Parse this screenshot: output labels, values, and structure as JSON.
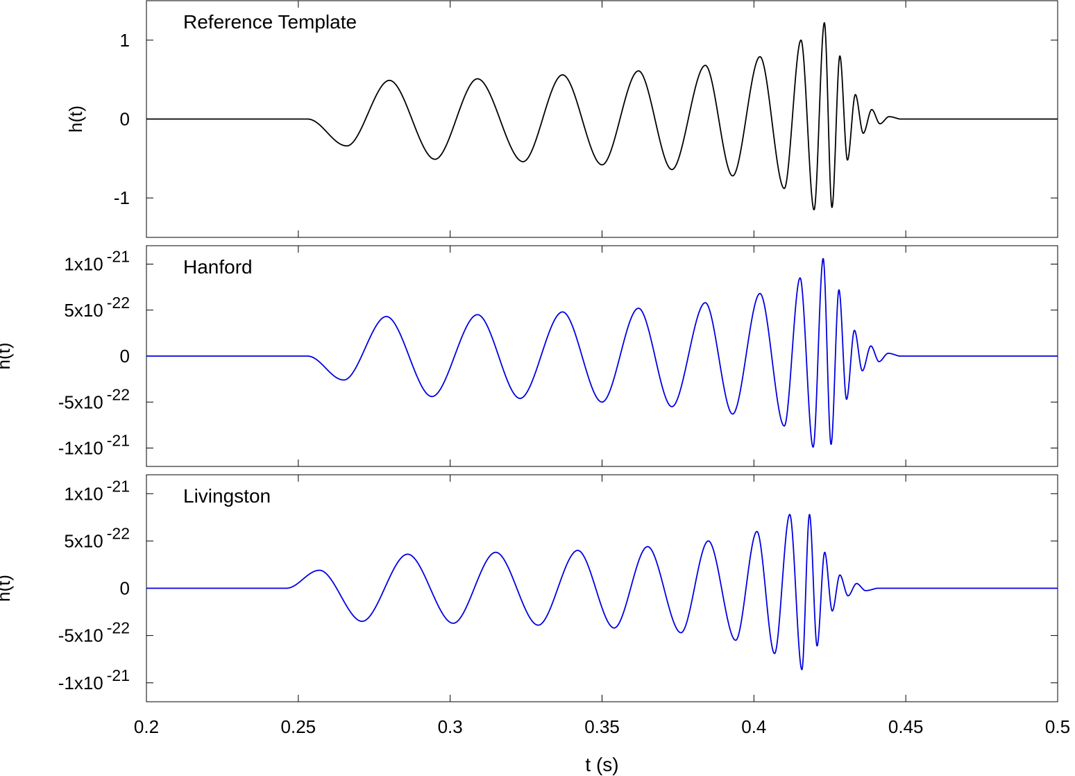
{
  "chart_data": [
    {
      "type": "line",
      "title": "Reference Template",
      "ylabel": "h(t)",
      "xlabel": "",
      "xlim": [
        0.2,
        0.5
      ],
      "ylim": [
        -1.5,
        1.5
      ],
      "yticks": [
        {
          "value": 1,
          "base": "1",
          "exp": ""
        },
        {
          "value": 0,
          "base": "0",
          "exp": ""
        },
        {
          "value": -1,
          "base": "-1",
          "exp": ""
        }
      ],
      "color": "#000000",
      "onset": 0.253,
      "scale": 0.49,
      "peak_t": 0.4232,
      "ringdown": 0.0055,
      "series": [
        {
          "x": [
            0.253,
            0.266,
            0.28,
            0.295,
            0.309,
            0.324,
            0.337,
            0.35,
            0.362,
            0.373,
            0.384,
            0.393,
            0.402,
            0.41,
            0.4155,
            0.4198,
            0.4232,
            0.4257,
            0.4283,
            0.4308,
            0.4334,
            0.436,
            0.4388,
            0.4415,
            0.4445,
            0.448
          ],
          "y": [
            0,
            -0.34,
            0.49,
            -0.51,
            0.51,
            -0.54,
            0.56,
            -0.58,
            0.61,
            -0.64,
            0.68,
            -0.72,
            0.79,
            -0.88,
            1.0,
            -1.15,
            1.22,
            -1.12,
            0.8,
            -0.52,
            0.31,
            -0.18,
            0.12,
            -0.06,
            0.03,
            0
          ]
        }
      ]
    },
    {
      "type": "line",
      "title": "Hanford",
      "ylabel": "h(t)",
      "xlabel": "",
      "xlim": [
        0.2,
        0.5
      ],
      "ylim": [
        -1.2e-21,
        1.2e-21
      ],
      "yticks": [
        {
          "value": 1e-21,
          "base": "1x10",
          "exp": "-21"
        },
        {
          "value": 5e-22,
          "base": "5x10",
          "exp": "-22"
        },
        {
          "value": 0,
          "base": "0",
          "exp": ""
        },
        {
          "value": -5e-22,
          "base": "-5x10",
          "exp": "-22"
        },
        {
          "value": -1e-21,
          "base": "-1x10",
          "exp": "-21"
        }
      ],
      "color": "#0000e0",
      "onset": 0.253,
      "scale": 4.3e-22,
      "peak_t": 0.4232,
      "ringdown": 0.0055,
      "series": [
        {
          "x": [
            0.253,
            0.265,
            0.279,
            0.294,
            0.309,
            0.323,
            0.337,
            0.35,
            0.362,
            0.373,
            0.384,
            0.393,
            0.402,
            0.41,
            0.4152,
            0.4195,
            0.4228,
            0.4254,
            0.428,
            0.4305,
            0.4331,
            0.4357,
            0.4385,
            0.4412,
            0.4442,
            0.4478
          ],
          "y": [
            0,
            -2.6e-22,
            4.3e-22,
            -4.4e-22,
            4.5e-22,
            -4.6e-22,
            4.8e-22,
            -5e-22,
            5.2e-22,
            -5.5e-22,
            5.8e-22,
            -6.3e-22,
            6.8e-22,
            -7.6e-22,
            8.5e-22,
            -9.9e-22,
            1.06e-21,
            -9.6e-22,
            7.2e-22,
            -4.7e-22,
            2.8e-22,
            -1.6e-22,
            1.1e-22,
            -6e-23,
            3e-23,
            0
          ]
        }
      ]
    },
    {
      "type": "line",
      "title": "Livingston",
      "ylabel": "h(t)",
      "xlabel": "t (s)",
      "xlim": [
        0.2,
        0.5
      ],
      "ylim": [
        -1.2e-21,
        1.2e-21
      ],
      "yticks": [
        {
          "value": 1e-21,
          "base": "1x10",
          "exp": "-21"
        },
        {
          "value": 5e-22,
          "base": "5x10",
          "exp": "-22"
        },
        {
          "value": 0,
          "base": "0",
          "exp": ""
        },
        {
          "value": -5e-22,
          "base": "-5x10",
          "exp": "-22"
        },
        {
          "value": -1e-21,
          "base": "-1x10",
          "exp": "-21"
        }
      ],
      "xticks": [
        0.2,
        0.25,
        0.3,
        0.35,
        0.4,
        0.45,
        0.5
      ],
      "xticklabels": [
        "0.2",
        "0.25",
        "0.3",
        "0.35",
        "0.4",
        "0.45",
        "0.5"
      ],
      "color": "#0000e0",
      "onset": 0.246,
      "scale": 3.5e-22,
      "peak_t": 0.4183,
      "ringdown": 0.0055,
      "series": [
        {
          "x": [
            0.246,
            0.257,
            0.271,
            0.286,
            0.301,
            0.315,
            0.329,
            0.342,
            0.354,
            0.365,
            0.376,
            0.385,
            0.394,
            0.401,
            0.4068,
            0.4118,
            0.4158,
            0.4183,
            0.4208,
            0.4233,
            0.4258,
            0.4283,
            0.431,
            0.4338,
            0.4368,
            0.4405
          ],
          "y": [
            0,
            1.9e-22,
            -3.5e-22,
            3.6e-22,
            -3.7e-22,
            3.8e-22,
            -3.9e-22,
            4e-22,
            -4.2e-22,
            4.4e-22,
            -4.7e-22,
            5e-22,
            -5.5e-22,
            6e-22,
            -6.9e-22,
            7.8e-22,
            -8.6e-22,
            7.8e-22,
            -6.1e-22,
            3.8e-22,
            -2.4e-22,
            1.4e-22,
            -8e-23,
            5e-23,
            -2.5e-23,
            0
          ]
        }
      ]
    }
  ]
}
